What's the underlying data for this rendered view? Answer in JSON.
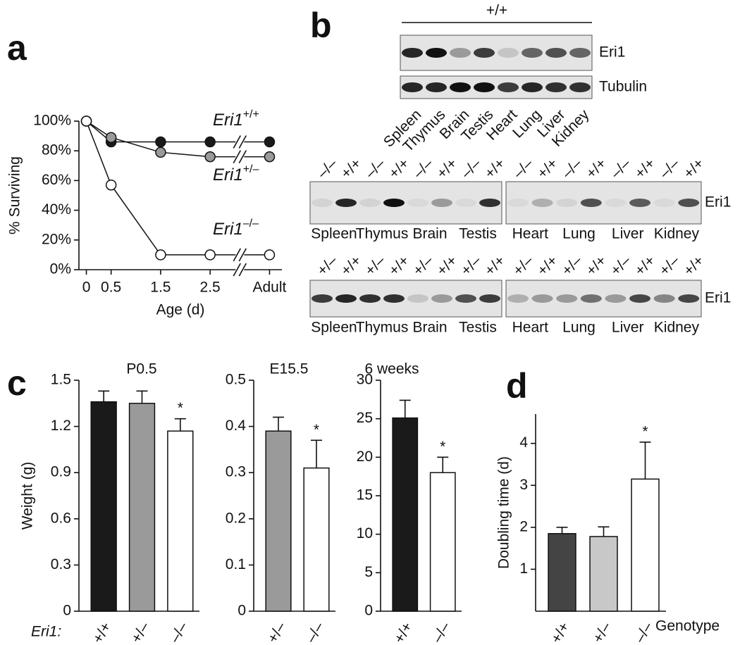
{
  "panel_labels": [
    "a",
    "b",
    "c",
    "d"
  ],
  "blots": {
    "top": {
      "genotype": "+/+",
      "bands": [
        "Eri1",
        "Tubulin"
      ],
      "tissues": [
        "Spleen",
        "Thymus",
        "Brain",
        "Testis",
        "Heart",
        "Lung",
        "Liver",
        "Kidney"
      ]
    },
    "middle": {
      "genotypes": [
        "–/–",
        "+/+",
        "–/–",
        "+/+",
        "–/–",
        "+/+",
        "–/–",
        "+/+",
        "–/–",
        "+/+",
        "–/–",
        "+/+",
        "–/–",
        "+/+",
        "–/–",
        "+/+"
      ],
      "band": "Eri1",
      "tissues": [
        "Spleen",
        "Thymus",
        "Brain",
        "Testis",
        "Heart",
        "Lung",
        "Liver",
        "Kidney"
      ]
    },
    "bottom": {
      "genotypes": [
        "+/–",
        "+/+",
        "+/–",
        "+/+",
        "+/–",
        "+/+",
        "+/–",
        "+/+",
        "+/–",
        "+/+",
        "+/–",
        "+/+",
        "+/–",
        "+/+",
        "+/–",
        "+/+"
      ],
      "band": "Eri1",
      "tissues": [
        "Spleen",
        "Thymus",
        "Brain",
        "Testis",
        "Heart",
        "Lung",
        "Liver",
        "Kidney"
      ]
    }
  },
  "chart_data": [
    {
      "type": "line",
      "xlabel": "Age (d)",
      "ylabel": "% Surviving",
      "x": [
        0,
        0.5,
        1.5,
        2.5,
        3.7
      ],
      "xlim": [
        -0.15,
        3.95
      ],
      "xticks": [
        0,
        0.5,
        1.5,
        2.5,
        {
          "value": 3.7,
          "label": "Adult"
        }
      ],
      "ylim": [
        0,
        100
      ],
      "yticks": [
        {
          "value": 0,
          "label": "0%"
        },
        {
          "value": 20,
          "label": "20%"
        },
        {
          "value": 40,
          "label": "40%"
        },
        {
          "value": 60,
          "label": "60%"
        },
        {
          "value": 80,
          "label": "80%"
        },
        {
          "value": 100,
          "label": "100%"
        }
      ],
      "series": [
        {
          "name": "Eri1",
          "superscript": "+/+",
          "color": "#1a1a1a",
          "values": [
            100,
            86,
            86,
            86,
            86
          ]
        },
        {
          "name": "Eri1",
          "superscript": "+/–",
          "color": "#9a9a9a",
          "values": [
            100,
            89,
            79,
            76,
            76
          ]
        },
        {
          "name": "Eri1",
          "superscript": "–/–",
          "color": "#ffffff",
          "values": [
            100,
            57,
            10,
            10,
            10
          ]
        }
      ]
    },
    {
      "type": "bar",
      "title": "P0.5",
      "ylabel": "Weight (g)",
      "xlabel": "Eri1:",
      "categories": [
        "+/+",
        "+/–",
        "–/–"
      ],
      "values": [
        1.36,
        1.35,
        1.17
      ],
      "errors": [
        0.07,
        0.08,
        0.08
      ],
      "colors": [
        "#1a1a1a",
        "#9a9a9a",
        "#ffffff"
      ],
      "annotations": [
        null,
        null,
        "*"
      ],
      "ylim": [
        0,
        1.5
      ],
      "yticks": [
        0,
        0.3,
        0.6,
        0.9,
        1.2,
        1.5
      ]
    },
    {
      "type": "bar",
      "title": "E15.5",
      "categories": [
        "+/–",
        "–/–"
      ],
      "values": [
        0.39,
        0.31
      ],
      "errors": [
        0.03,
        0.06
      ],
      "colors": [
        "#9a9a9a",
        "#ffffff"
      ],
      "annotations": [
        null,
        "*"
      ],
      "ylim": [
        0,
        0.5
      ],
      "yticks": [
        0,
        0.1,
        0.2,
        0.3,
        0.4,
        0.5
      ]
    },
    {
      "type": "bar",
      "title": "6 weeks",
      "categories": [
        "+/+",
        "–/–"
      ],
      "values": [
        25.1,
        18.0
      ],
      "errors": [
        2.3,
        2.0
      ],
      "colors": [
        "#1a1a1a",
        "#ffffff"
      ],
      "annotations": [
        null,
        "*"
      ],
      "ylim": [
        0,
        30
      ],
      "yticks": [
        0,
        5,
        10,
        15,
        20,
        25,
        30
      ]
    },
    {
      "type": "bar",
      "ylabel": "Doubling time (d)",
      "xlabel": "Genotype",
      "categories": [
        "+/+",
        "+/–",
        "–/–"
      ],
      "values": [
        1.85,
        1.78,
        3.15
      ],
      "errors": [
        0.15,
        0.23,
        0.88
      ],
      "colors": [
        "#444444",
        "#c8c8c8",
        "#ffffff"
      ],
      "annotations": [
        null,
        null,
        "*"
      ],
      "ylim": [
        0,
        4.7
      ],
      "yticks": [
        1,
        2,
        3,
        4
      ]
    }
  ]
}
